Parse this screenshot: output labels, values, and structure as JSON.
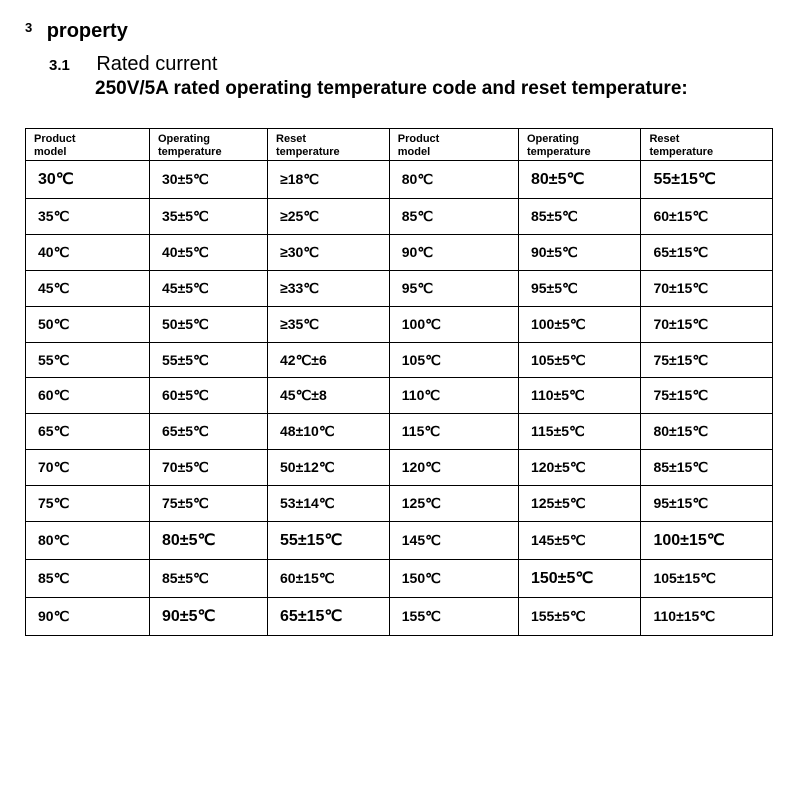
{
  "heading": {
    "section_num": "3",
    "section_title": "property",
    "sub_num": "3.1",
    "sub_title": "Rated current",
    "sub_desc": "250V/5A rated operating temperature code and reset temperature:"
  },
  "table": {
    "columns": [
      "Product model",
      "Operating temperature",
      "Reset temperature",
      "Product model",
      "Operating temperature",
      "Reset temperature"
    ],
    "col_widths_pct": [
      16.6,
      15.8,
      16.3,
      17.3,
      16.4,
      17.6
    ],
    "border_color": "#000000",
    "header_fontsize": 11,
    "cell_fontsize": 14,
    "big_fontsize": 16,
    "rows": [
      {
        "cells": [
          {
            "t": "30℃",
            "big": true
          },
          {
            "t": "30±5℃"
          },
          {
            "t": "≥18℃"
          },
          {
            "t": "80℃"
          },
          {
            "t": "80±5℃",
            "big": true
          },
          {
            "t": "55±15℃",
            "big": true
          }
        ]
      },
      {
        "cells": [
          {
            "t": "35℃"
          },
          {
            "t": "35±5℃"
          },
          {
            "t": "≥25℃"
          },
          {
            "t": "85℃"
          },
          {
            "t": "85±5℃"
          },
          {
            "t": "60±15℃"
          }
        ]
      },
      {
        "cells": [
          {
            "t": "40℃"
          },
          {
            "t": "40±5℃"
          },
          {
            "t": "≥30℃"
          },
          {
            "t": "90℃"
          },
          {
            "t": "90±5℃"
          },
          {
            "t": "65±15℃"
          }
        ]
      },
      {
        "cells": [
          {
            "t": "45℃"
          },
          {
            "t": "45±5℃"
          },
          {
            "t": "≥33℃"
          },
          {
            "t": "95℃"
          },
          {
            "t": "95±5℃"
          },
          {
            "t": "70±15℃"
          }
        ]
      },
      {
        "cells": [
          {
            "t": "50℃"
          },
          {
            "t": "50±5℃"
          },
          {
            "t": "≥35℃"
          },
          {
            "t": "100℃"
          },
          {
            "t": "100±5℃"
          },
          {
            "t": "70±15℃"
          }
        ]
      },
      {
        "cells": [
          {
            "t": "55℃"
          },
          {
            "t": "55±5℃"
          },
          {
            "t": "42℃±6"
          },
          {
            "t": "105℃"
          },
          {
            "t": "105±5℃"
          },
          {
            "t": "75±15℃"
          }
        ]
      },
      {
        "cells": [
          {
            "t": "60℃"
          },
          {
            "t": "60±5℃"
          },
          {
            "t": "45℃±8"
          },
          {
            "t": "110℃"
          },
          {
            "t": "110±5℃"
          },
          {
            "t": "75±15℃"
          }
        ]
      },
      {
        "cells": [
          {
            "t": "65℃"
          },
          {
            "t": "65±5℃"
          },
          {
            "t": "48±10℃"
          },
          {
            "t": "115℃"
          },
          {
            "t": "115±5℃"
          },
          {
            "t": "80±15℃"
          }
        ]
      },
      {
        "cells": [
          {
            "t": "70℃"
          },
          {
            "t": "70±5℃"
          },
          {
            "t": "50±12℃"
          },
          {
            "t": "120℃"
          },
          {
            "t": "120±5℃"
          },
          {
            "t": "85±15℃"
          }
        ]
      },
      {
        "cells": [
          {
            "t": "75℃"
          },
          {
            "t": "75±5℃"
          },
          {
            "t": "53±14℃"
          },
          {
            "t": "125℃"
          },
          {
            "t": "125±5℃"
          },
          {
            "t": "95±15℃"
          }
        ]
      },
      {
        "cells": [
          {
            "t": "80℃"
          },
          {
            "t": "80±5℃",
            "big": true
          },
          {
            "t": "55±15℃",
            "big": true
          },
          {
            "t": "145℃"
          },
          {
            "t": "145±5℃"
          },
          {
            "t": "100±15℃",
            "big": true
          }
        ]
      },
      {
        "cells": [
          {
            "t": "85℃"
          },
          {
            "t": "85±5℃"
          },
          {
            "t": "60±15℃"
          },
          {
            "t": "150℃"
          },
          {
            "t": "150±5℃",
            "big": true
          },
          {
            "t": "105±15℃"
          }
        ]
      },
      {
        "cells": [
          {
            "t": "90℃"
          },
          {
            "t": "90±5℃",
            "big": true
          },
          {
            "t": "65±15℃",
            "big": true
          },
          {
            "t": "155℃"
          },
          {
            "t": "155±5℃"
          },
          {
            "t": "110±15℃"
          }
        ]
      }
    ]
  }
}
